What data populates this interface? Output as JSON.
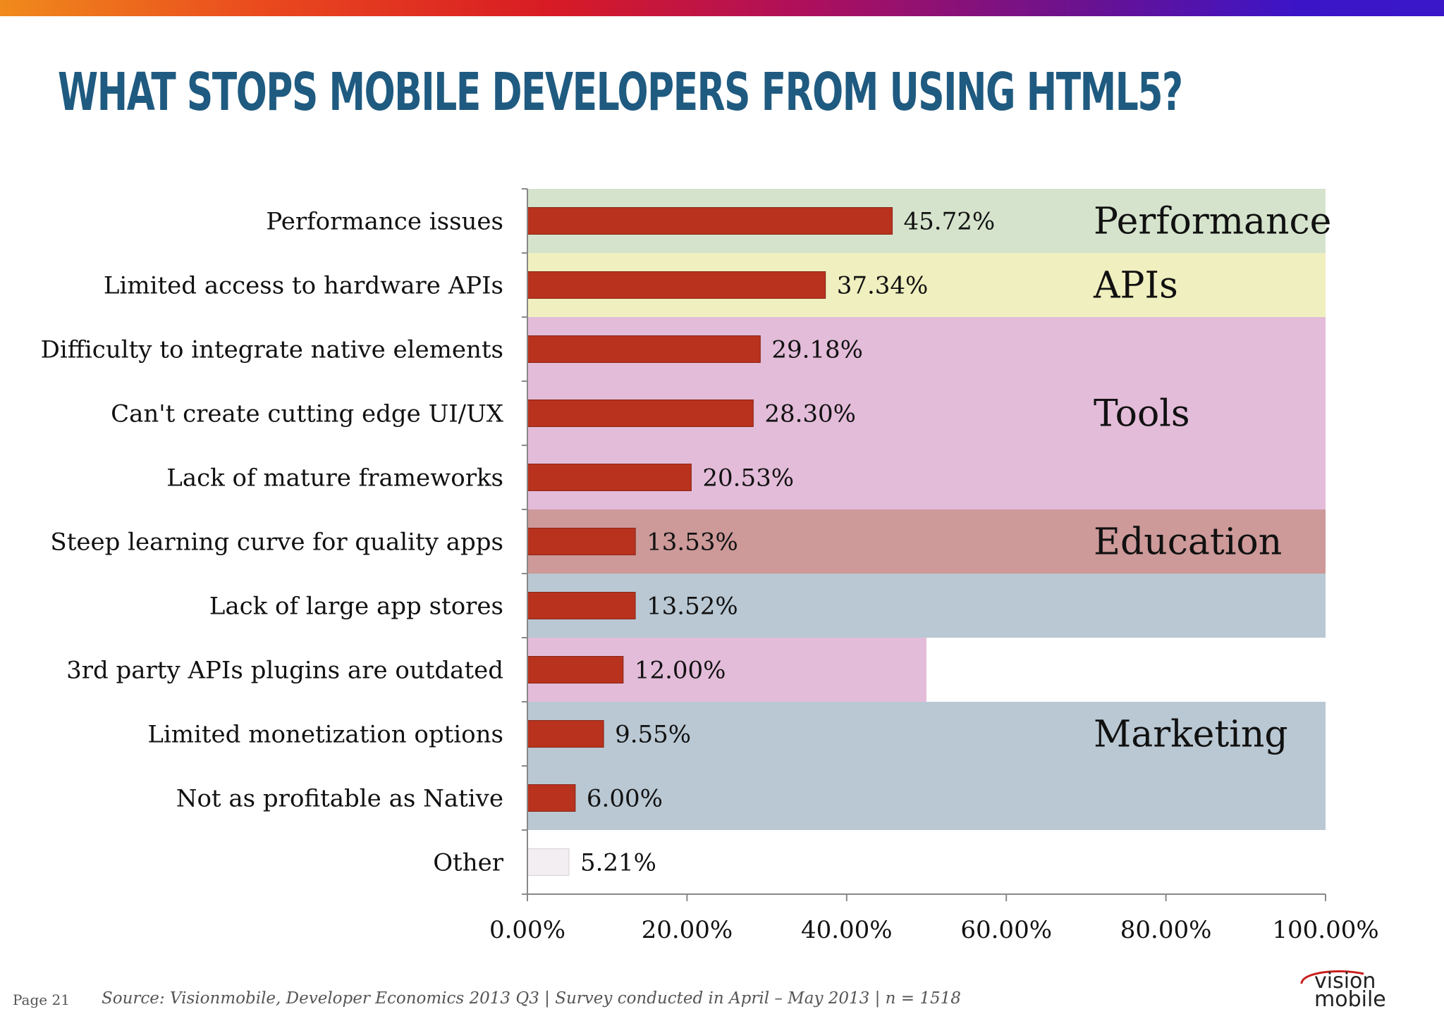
{
  "title": "WHAT STOPS MOBILE DEVELOPERS FROM USING HTML5?",
  "footer": {
    "page": "Page 21",
    "source": "Source: Visionmobile, Developer Economics 2013 Q3 | Survey conducted in April – May 2013 | n = 1518"
  },
  "logo": {
    "line1": "vision",
    "line2": "mobile"
  },
  "colors": {
    "title": "#1f5a80",
    "bar": "#b8321e",
    "bar_other": "#f3eef2",
    "band_performance": "#d5e3cc",
    "band_apis": "#f0efbf",
    "band_tools": "#e3bcd9",
    "band_education": "#cd9999",
    "band_marketing": "#b9c8d3"
  },
  "chart_data": {
    "type": "bar",
    "orientation": "horizontal",
    "categories": [
      "Performance issues",
      "Limited access to hardware APIs",
      "Difficulty to integrate native elements",
      "Can't create cutting edge UI/UX",
      "Lack of mature frameworks",
      "Steep learning curve for quality apps",
      "Lack of large app stores",
      "3rd party APIs plugins are outdated",
      "Limited monetization options",
      "Not as profitable as Native",
      "Other"
    ],
    "values": [
      45.72,
      37.34,
      29.18,
      28.3,
      20.53,
      13.53,
      13.52,
      12.0,
      9.55,
      6.0,
      5.21
    ],
    "value_labels": [
      "45.72%",
      "37.34%",
      "29.18%",
      "28.30%",
      "20.53%",
      "13.53%",
      "13.52%",
      "12.00%",
      "9.55%",
      "6.00%",
      "5.21%"
    ],
    "xlim": [
      0,
      100
    ],
    "xticks": [
      0,
      20,
      40,
      60,
      80,
      100
    ],
    "xtick_labels": [
      "0.00%",
      "20.00%",
      "40.00%",
      "60.00%",
      "80.00%",
      "100.00%"
    ],
    "groups": [
      {
        "label": "Performance",
        "rows": [
          0
        ]
      },
      {
        "label": "APIs",
        "rows": [
          1
        ]
      },
      {
        "label": "Tools",
        "rows": [
          2,
          3,
          4,
          7
        ]
      },
      {
        "label": "Education",
        "rows": [
          5
        ]
      },
      {
        "label": "Marketing",
        "rows": [
          6,
          8,
          9
        ]
      }
    ],
    "grid": false,
    "legend": "none"
  }
}
